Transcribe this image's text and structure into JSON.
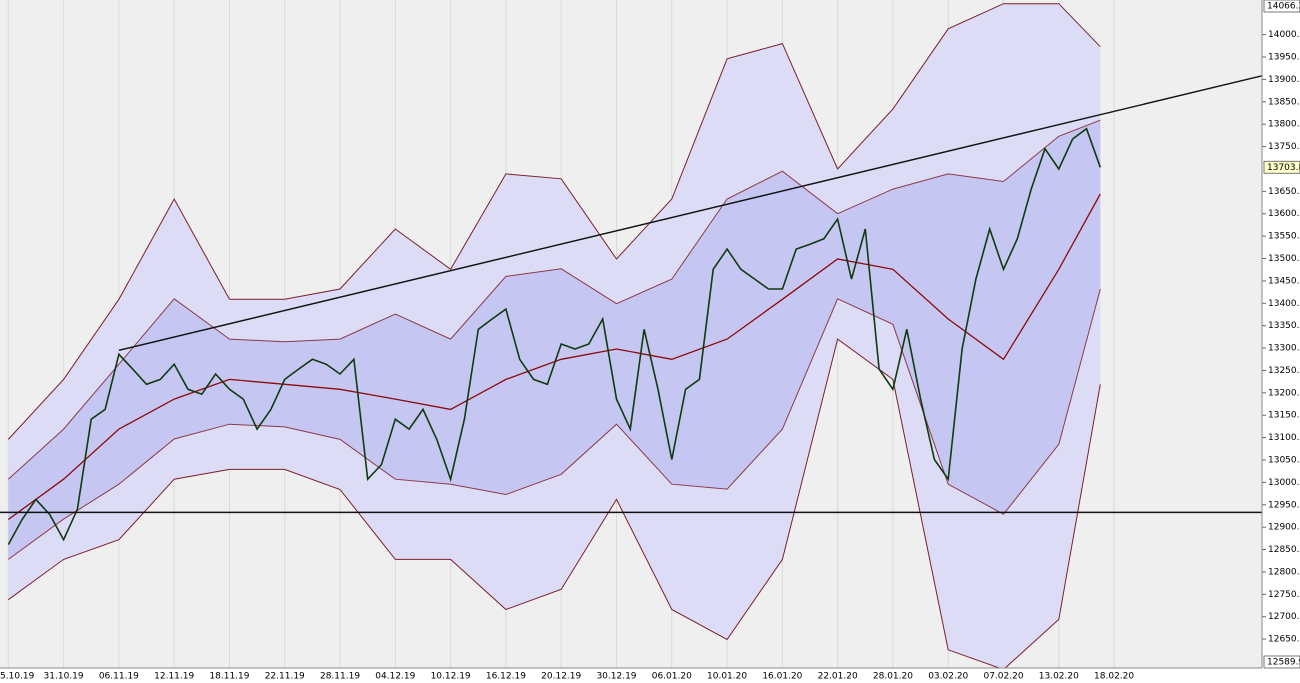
{
  "chart_data": {
    "type": "line",
    "xlim": [
      -0.6,
      90.7
    ],
    "ylim": [
      12589.9,
      14066.2
    ],
    "grid": true,
    "xticks": [
      {
        "value": 0,
        "label": "5.10.19"
      },
      {
        "value": 4,
        "label": "31.10.19"
      },
      {
        "value": 8,
        "label": "06.11.19"
      },
      {
        "value": 12,
        "label": "12.11.19"
      },
      {
        "value": 16,
        "label": "18.11.19"
      },
      {
        "value": 20,
        "label": "22.11.19"
      },
      {
        "value": 24,
        "label": "28.11.19"
      },
      {
        "value": 28,
        "label": "04.12.19"
      },
      {
        "value": 32,
        "label": "10.12.19"
      },
      {
        "value": 36,
        "label": "16.12.19"
      },
      {
        "value": 40,
        "label": "20.12.19"
      },
      {
        "value": 44,
        "label": "30.12.19"
      },
      {
        "value": 48,
        "label": "06.01.20"
      },
      {
        "value": 52,
        "label": "10.01.20"
      },
      {
        "value": 56,
        "label": "16.01.20"
      },
      {
        "value": 60,
        "label": "22.01.20"
      },
      {
        "value": 64,
        "label": "28.01.20"
      },
      {
        "value": 68,
        "label": "03.02.20"
      },
      {
        "value": 72,
        "label": "07.02.20"
      },
      {
        "value": 76,
        "label": "13.02.20"
      },
      {
        "value": 80,
        "label": "18.02.20"
      }
    ],
    "yticks": [
      {
        "value": 12650,
        "label": "12650.0"
      },
      {
        "value": 12700,
        "label": "12700.0"
      },
      {
        "value": 12750,
        "label": "12750.0"
      },
      {
        "value": 12800,
        "label": "12800.0"
      },
      {
        "value": 12850,
        "label": "12850.0"
      },
      {
        "value": 12900,
        "label": "12900.0"
      },
      {
        "value": 12950,
        "label": "12950.0"
      },
      {
        "value": 13000,
        "label": "13000.0"
      },
      {
        "value": 13050,
        "label": "13050.0"
      },
      {
        "value": 13100,
        "label": "13100.0"
      },
      {
        "value": 13150,
        "label": "13150.0"
      },
      {
        "value": 13200,
        "label": "13200.0"
      },
      {
        "value": 13250,
        "label": "13250.0"
      },
      {
        "value": 13300,
        "label": "13300.0"
      },
      {
        "value": 13350,
        "label": "13350.0"
      },
      {
        "value": 13400,
        "label": "13400.0"
      },
      {
        "value": 13450,
        "label": "13450.0"
      },
      {
        "value": 13500,
        "label": "13500.0"
      },
      {
        "value": 13550,
        "label": "13550.0"
      },
      {
        "value": 13600,
        "label": "13600.0"
      },
      {
        "value": 13650,
        "label": "13650.0"
      },
      {
        "value": 13750,
        "label": "13750.0"
      },
      {
        "value": 13800,
        "label": "13800.0"
      },
      {
        "value": 13850,
        "label": "13850.0"
      },
      {
        "value": 13900,
        "label": "13900.0"
      },
      {
        "value": 13950,
        "label": "13950.0"
      },
      {
        "value": 14000,
        "label": "14000.0"
      }
    ],
    "band_x": [
      0,
      4,
      8,
      12,
      16,
      20,
      24,
      28,
      32,
      36,
      40,
      44,
      48,
      52,
      56,
      60,
      64,
      68,
      72,
      76,
      79
    ],
    "bands": [
      {
        "color": "#dcdcf6",
        "line_color": "#7a1f2a",
        "upper": [
          13096,
          13230,
          13409,
          13633,
          13409,
          13409,
          13432,
          13566,
          13476,
          13689,
          13678,
          13499,
          13633,
          13946,
          13980,
          13700,
          13834,
          14013,
          14069,
          14069,
          13973
        ],
        "lower": [
          12738,
          12828,
          12872,
          13007,
          13029,
          13029,
          12984,
          12828,
          12828,
          12716,
          12761,
          12962,
          12716,
          12649,
          12828,
          13320,
          13230,
          12626,
          12582,
          12694,
          13219
        ]
      },
      {
        "color": "#c6c6f2",
        "line_color": "#8a3a4a",
        "upper": [
          13007,
          13119,
          13264,
          13410,
          13320,
          13314,
          13320,
          13376,
          13320,
          13460,
          13477,
          13399,
          13454,
          13633,
          13695,
          13600,
          13655,
          13689,
          13672,
          13773,
          13809
        ],
        "lower": [
          12828,
          12918,
          12996,
          13097,
          13130,
          13124,
          13096,
          13007,
          12996,
          12973,
          13018,
          13130,
          12996,
          12985,
          13119,
          13410,
          13353,
          12996,
          12929,
          13085,
          13432
        ]
      }
    ],
    "series": [
      {
        "color": "#103a10",
        "x": [
          0,
          1,
          2,
          3,
          4,
          5,
          6,
          7,
          8,
          9,
          10,
          11,
          12,
          13,
          14,
          15,
          16,
          17,
          18,
          19,
          20,
          21,
          22,
          23,
          24,
          25,
          26,
          27,
          28,
          29,
          30,
          31,
          32,
          33,
          34,
          35,
          36,
          37,
          38,
          39,
          40,
          41,
          42,
          43,
          44,
          45,
          46,
          47,
          48,
          49,
          50,
          51,
          52,
          53,
          54,
          55,
          56,
          57,
          58,
          59,
          60,
          61,
          62,
          63,
          64,
          65,
          66,
          67,
          68,
          69,
          70,
          71,
          72,
          73,
          74,
          75,
          76,
          77,
          78,
          79
        ],
        "values": [
          12861,
          12917,
          12962,
          12928,
          12872,
          12940,
          13141,
          13163,
          13286,
          13253,
          13219,
          13230,
          13264,
          13208,
          13197,
          13242,
          13208,
          13186,
          13119,
          13163,
          13230,
          13253,
          13275,
          13264,
          13242,
          13275,
          13007,
          13040,
          13141,
          13119,
          13163,
          13096,
          13007,
          13141,
          13342,
          13365,
          13387,
          13275,
          13230,
          13219,
          13309,
          13298,
          13309,
          13365,
          13186,
          13119,
          13342,
          13208,
          13051,
          13208,
          13230,
          13476,
          13521,
          13476,
          13454,
          13432,
          13432,
          13521,
          13532,
          13544,
          13588,
          13454,
          13566,
          13253,
          13208,
          13342,
          13186,
          13051,
          13007,
          13298,
          13454,
          13566,
          13476,
          13544,
          13655,
          13745,
          13700,
          13767,
          13790,
          13703.8
        ]
      },
      {
        "color": "#8b0a0a",
        "x_ref": "band_x",
        "values": [
          12917,
          13007,
          13119,
          13186,
          13230,
          13219,
          13208,
          13186,
          13163,
          13230,
          13275,
          13298,
          13275,
          13320,
          13409,
          13499,
          13476,
          13365,
          13275,
          13476,
          13644
        ]
      }
    ],
    "trendline": {
      "x": [
        8,
        90.7
      ],
      "values": [
        13295,
        13908
      ]
    },
    "hline": 12933
  }
}
